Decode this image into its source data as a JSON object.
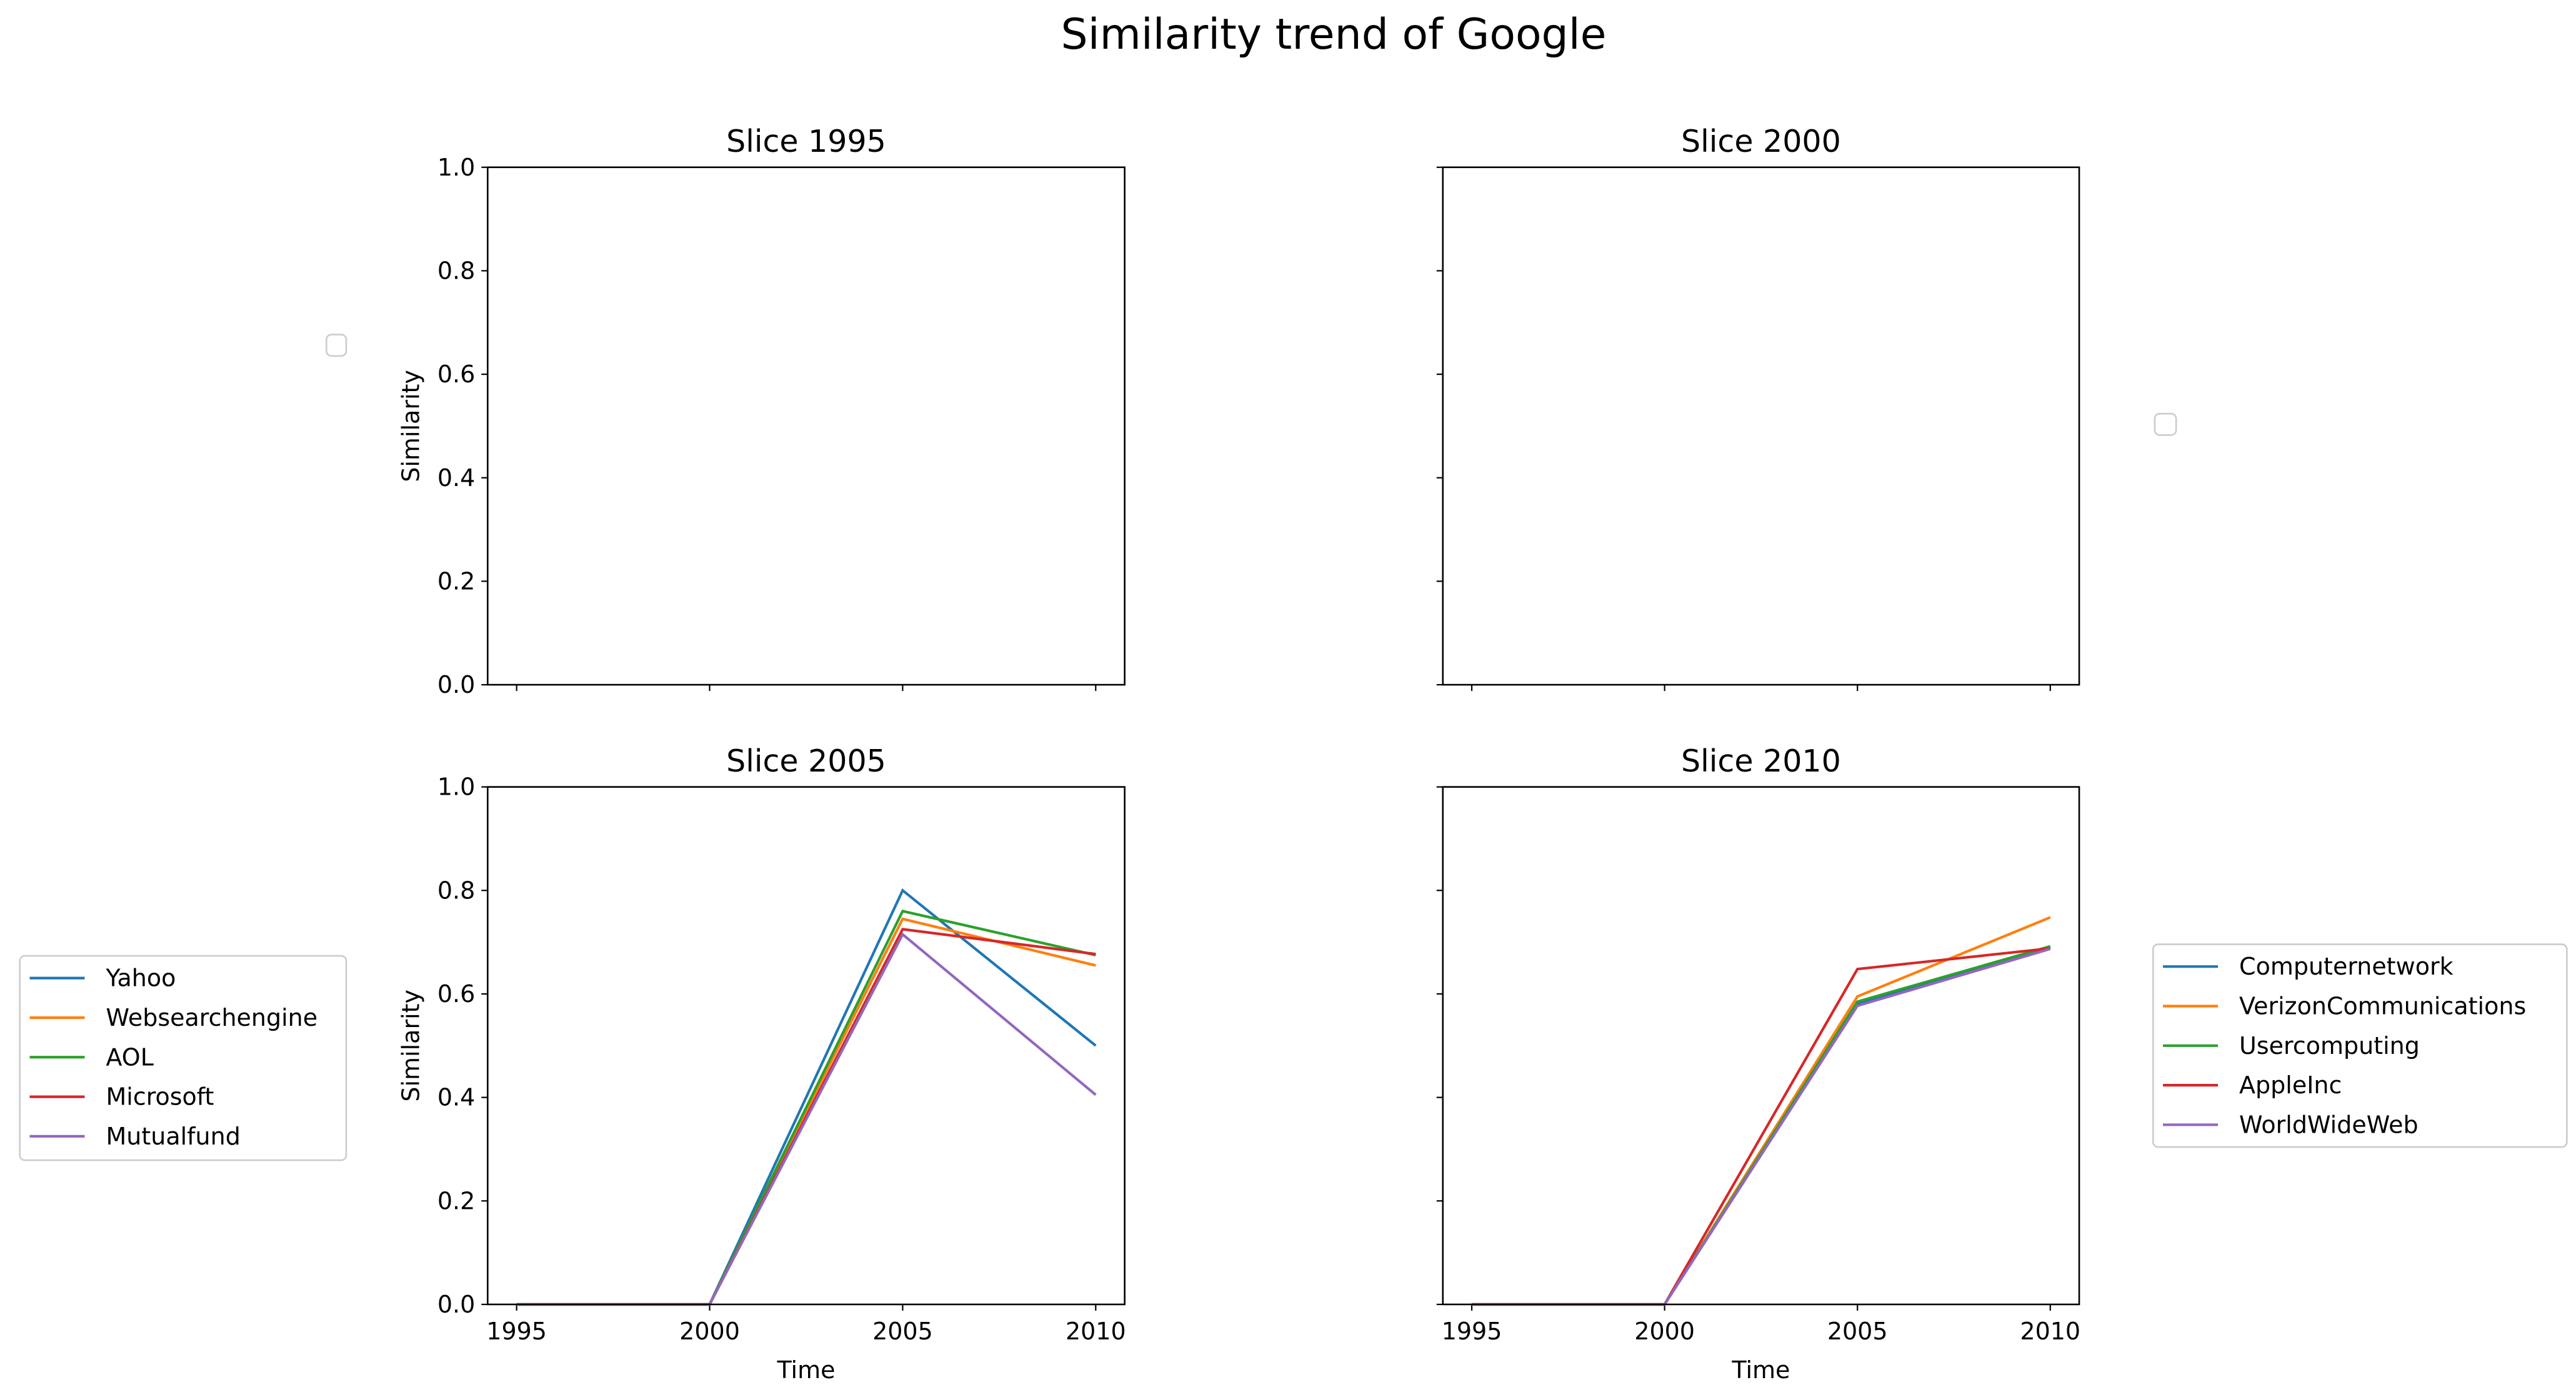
{
  "figure": {
    "title": "Similarity trend of Google"
  },
  "chart_data": [
    {
      "type": "line",
      "title": "Slice 1995",
      "xlabel": "",
      "ylabel": "Similarity",
      "xlim": [
        1995,
        2010
      ],
      "ylim": [
        0,
        1
      ],
      "x_ticks": [
        1995,
        2000,
        2005,
        2010
      ],
      "y_ticks": [
        "0.0",
        "0.2",
        "0.4",
        "0.6",
        "0.8",
        "1.0"
      ],
      "show_x_ticklabels": false,
      "show_y_ticklabels": true,
      "series": [],
      "legend": {
        "placement": "left",
        "empty": true
      }
    },
    {
      "type": "line",
      "title": "Slice 2000",
      "xlabel": "",
      "ylabel": "",
      "xlim": [
        1995,
        2010
      ],
      "ylim": [
        0,
        1
      ],
      "x_ticks": [
        1995,
        2000,
        2005,
        2010
      ],
      "y_ticks": [
        "0.0",
        "0.2",
        "0.4",
        "0.6",
        "0.8",
        "1.0"
      ],
      "show_x_ticklabels": false,
      "show_y_ticklabels": false,
      "series": [],
      "legend": {
        "placement": "right",
        "empty": true
      }
    },
    {
      "type": "line",
      "title": "Slice 2005",
      "xlabel": "Time",
      "ylabel": "Similarity",
      "xlim": [
        1995,
        2010
      ],
      "ylim": [
        0,
        1
      ],
      "x_ticks": [
        1995,
        2000,
        2005,
        2010
      ],
      "y_ticks": [
        "0.0",
        "0.2",
        "0.4",
        "0.6",
        "0.8",
        "1.0"
      ],
      "show_x_ticklabels": true,
      "show_y_ticklabels": true,
      "x": [
        1995,
        2000,
        2005,
        2010
      ],
      "series": [
        {
          "name": "Yahoo",
          "color": "#1f77b4",
          "values": [
            0,
            0,
            0.8,
            0.5
          ]
        },
        {
          "name": "Websearchengine",
          "color": "#ff7f0e",
          "values": [
            0,
            0,
            0.745,
            0.655
          ]
        },
        {
          "name": "AOL",
          "color": "#2ca02c",
          "values": [
            0,
            0,
            0.76,
            0.675
          ]
        },
        {
          "name": "Microsoft",
          "color": "#d62728",
          "values": [
            0,
            0,
            0.725,
            0.677
          ]
        },
        {
          "name": "Mutualfund",
          "color": "#9467bd",
          "values": [
            0,
            0,
            0.715,
            0.405
          ]
        }
      ],
      "legend": {
        "placement": "left",
        "empty": false
      }
    },
    {
      "type": "line",
      "title": "Slice 2010",
      "xlabel": "Time",
      "ylabel": "",
      "xlim": [
        1995,
        2010
      ],
      "ylim": [
        0,
        1
      ],
      "x_ticks": [
        1995,
        2000,
        2005,
        2010
      ],
      "y_ticks": [
        "0.0",
        "0.2",
        "0.4",
        "0.6",
        "0.8",
        "1.0"
      ],
      "show_x_ticklabels": true,
      "show_y_ticklabels": false,
      "x": [
        1995,
        2000,
        2005,
        2010
      ],
      "series": [
        {
          "name": "Computernetwork",
          "color": "#1f77b4",
          "values": [
            0,
            0,
            0.58,
            0.69
          ]
        },
        {
          "name": "VerizonCommunications",
          "color": "#ff7f0e",
          "values": [
            0,
            0,
            0.595,
            0.748
          ]
        },
        {
          "name": "Usercomputing",
          "color": "#2ca02c",
          "values": [
            0,
            0,
            0.585,
            0.692
          ]
        },
        {
          "name": "AppleInc",
          "color": "#d62728",
          "values": [
            0,
            0,
            0.648,
            0.688
          ]
        },
        {
          "name": "WorldWideWeb",
          "color": "#9467bd",
          "values": [
            0,
            0,
            0.577,
            0.687
          ]
        }
      ],
      "legend": {
        "placement": "right",
        "empty": false
      }
    }
  ]
}
